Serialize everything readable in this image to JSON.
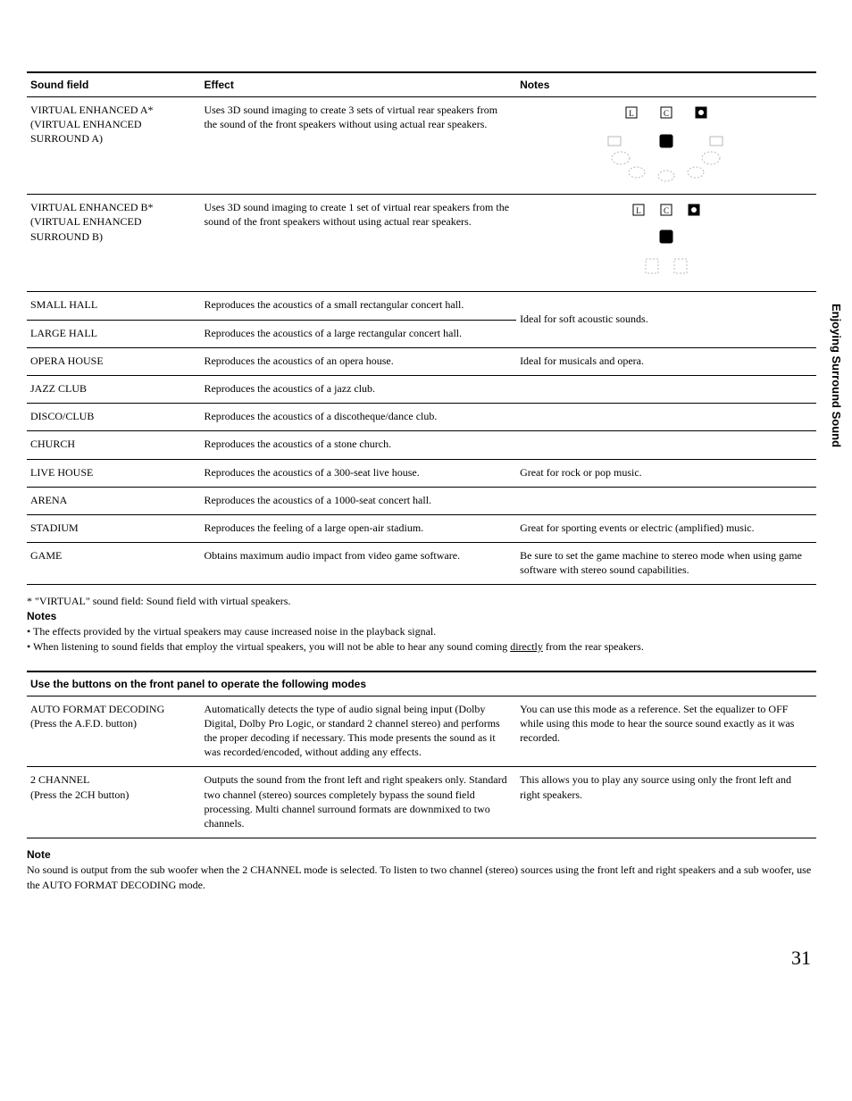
{
  "side_label": "Enjoying Surround Sound",
  "table1": {
    "headers": {
      "h1": "Sound field",
      "h2": "Effect",
      "h3": "Notes"
    },
    "rows": [
      {
        "sf": "VIRTUAL ENHANCED A*\n(VIRTUAL ENHANCED SURROUND A)",
        "ef": "Uses 3D sound imaging to create 3 sets of virtual rear speakers from the sound of the front speakers without using actual rear speakers.",
        "nt": ""
      },
      {
        "sf": "VIRTUAL ENHANCED B*\n(VIRTUAL ENHANCED SURROUND B)",
        "ef": "Uses 3D sound imaging to create 1 set of virtual rear speakers from the sound of the front speakers without using actual rear speakers.",
        "nt": ""
      },
      {
        "sf": "SMALL HALL",
        "ef": "Reproduces the acoustics of a small rectangular concert hall.",
        "nt": "Ideal for soft acoustic sounds.",
        "merge_nt": true
      },
      {
        "sf": "LARGE HALL",
        "ef": "Reproduces the acoustics of a large rectangular concert hall.",
        "nt": ""
      },
      {
        "sf": "OPERA HOUSE",
        "ef": "Reproduces the acoustics of an opera house.",
        "nt": "Ideal for musicals and opera."
      },
      {
        "sf": "JAZZ CLUB",
        "ef": "Reproduces the acoustics of a jazz club.",
        "nt": ""
      },
      {
        "sf": "DISCO/CLUB",
        "ef": "Reproduces the acoustics of a discotheque/dance club.",
        "nt": ""
      },
      {
        "sf": "CHURCH",
        "ef": "Reproduces the acoustics of a stone church.",
        "nt": ""
      },
      {
        "sf": "LIVE HOUSE",
        "ef": "Reproduces the acoustics of a 300-seat live house.",
        "nt": "Great for rock or pop music."
      },
      {
        "sf": "ARENA",
        "ef": "Reproduces the acoustics of a 1000-seat concert hall.",
        "nt": ""
      },
      {
        "sf": "STADIUM",
        "ef": "Reproduces the feeling of a large open-air stadium.",
        "nt": "Great for sporting events or electric (amplified) music."
      },
      {
        "sf": "GAME",
        "ef": "Obtains maximum audio impact from video game software.",
        "nt": "Be sure to set the game machine to stereo mode when using game software with stereo sound capabilities."
      }
    ]
  },
  "footnotes": {
    "line1": "* \"VIRTUAL\" sound field: Sound field with virtual speakers.",
    "heading": "Notes",
    "bullet1": "• The effects provided by the virtual speakers may cause increased noise in the playback signal.",
    "bullet2a": "• When listening to sound fields that employ the virtual speakers, you will not be able to hear any sound coming ",
    "bullet2u": "directly",
    "bullet2b": " from the rear speakers."
  },
  "section2": {
    "title": "Use the buttons on the front panel to operate the following modes",
    "rows": [
      {
        "c1a": "AUTO FORMAT DECODING",
        "c1b": "(Press the A.F.D. button)",
        "c2": "Automatically detects the type of audio signal being input (Dolby Digital, Dolby Pro Logic, or standard 2 channel stereo) and performs the proper decoding if necessary. This mode presents the sound as it was recorded/encoded, without adding any effects.",
        "c3": "You can use this mode as a reference. Set the equalizer to OFF while using this mode to hear the source sound exactly as it was recorded."
      },
      {
        "c1a": "2 CHANNEL",
        "c1b": "(Press the 2CH button)",
        "c2": "Outputs the sound from the front left and right speakers only. Standard two channel (stereo) sources completely bypass the sound field processing. Multi channel surround formats are downmixed to two channels.",
        "c3": "This allows you to play any source using only the front left and right speakers."
      }
    ]
  },
  "note2": {
    "heading": "Note",
    "body": "No sound is output from the sub woofer when the 2 CHANNEL mode is selected. To listen to two channel (stereo) sources using the front left and right speakers and a sub woofer, use the AUTO FORMAT DECODING mode."
  },
  "pagenum": "31",
  "svg_colors": {
    "stroke": "#000000",
    "ghost": "#b8b8b8",
    "fill_white": "#ffffff"
  }
}
